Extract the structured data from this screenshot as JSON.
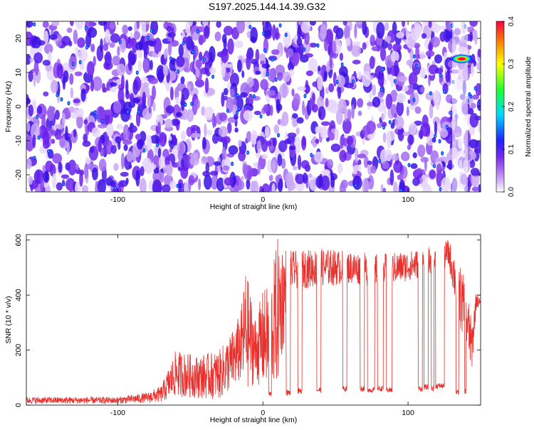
{
  "title": "S197.2025.144.14.39.G32",
  "chart_data": [
    {
      "type": "heatmap",
      "xlabel": "Height of straight line (km)",
      "ylabel": "Frequency (Hz)",
      "xlim": [
        -163,
        150
      ],
      "ylim": [
        -25,
        25
      ],
      "xticks": [
        -100,
        0,
        100
      ],
      "yticks": [
        -20,
        -10,
        0,
        10,
        20
      ],
      "colorbar": {
        "label": "Normalized spectral amplitude",
        "range": [
          0,
          0.4
        ],
        "ticks": [
          "0.0",
          "0.1",
          "0.2",
          "0.3",
          "0.4"
        ],
        "colors": [
          "#ffffff",
          "#b070f0",
          "#7a2cf0",
          "#2020ff",
          "#00d8ff",
          "#20ff30",
          "#ffff00",
          "#ff8000",
          "#ff0040"
        ]
      },
      "peak": {
        "x": 137,
        "y": 14,
        "value": 0.4
      }
    },
    {
      "type": "line",
      "xlabel": "Height of straight line (km)",
      "ylabel": "SNR (10 * v/v)",
      "xlim": [
        -163,
        150
      ],
      "ylim": [
        0,
        620
      ],
      "xticks": [
        -100,
        0,
        100
      ],
      "yticks": [
        0,
        200,
        400,
        600
      ],
      "color": "#e8302c",
      "envelope": [
        {
          "x": -163,
          "low": 5,
          "high": 30
        },
        {
          "x": -120,
          "low": 5,
          "high": 30
        },
        {
          "x": -100,
          "low": 5,
          "high": 30
        },
        {
          "x": -80,
          "low": 8,
          "high": 45
        },
        {
          "x": -70,
          "low": 10,
          "high": 70
        },
        {
          "x": -60,
          "low": 30,
          "high": 200
        },
        {
          "x": -45,
          "low": 25,
          "high": 180
        },
        {
          "x": -30,
          "low": 20,
          "high": 200
        },
        {
          "x": -20,
          "low": 60,
          "high": 280
        },
        {
          "x": -15,
          "low": 80,
          "high": 350
        },
        {
          "x": -12,
          "low": 50,
          "high": 500
        },
        {
          "x": -5,
          "low": 80,
          "high": 320
        },
        {
          "x": 0,
          "low": 60,
          "high": 420
        },
        {
          "x": 5,
          "low": 80,
          "high": 440
        },
        {
          "x": 10,
          "low": 60,
          "high": 610
        },
        {
          "x": 20,
          "low": 420,
          "high": 560
        },
        {
          "x": 40,
          "low": 430,
          "high": 570
        },
        {
          "x": 60,
          "low": 440,
          "high": 560
        },
        {
          "x": 80,
          "low": 430,
          "high": 550
        },
        {
          "x": 100,
          "low": 450,
          "high": 560
        },
        {
          "x": 120,
          "low": 480,
          "high": 580
        },
        {
          "x": 128,
          "low": 500,
          "high": 605
        },
        {
          "x": 135,
          "low": 300,
          "high": 520
        },
        {
          "x": 140,
          "low": 200,
          "high": 450
        },
        {
          "x": 144,
          "low": 120,
          "high": 300
        },
        {
          "x": 147,
          "low": 350,
          "high": 420
        },
        {
          "x": 150,
          "low": 360,
          "high": 380
        }
      ],
      "dips": [
        {
          "x1": 4,
          "x2": 6,
          "level": 40
        },
        {
          "x1": 16,
          "x2": 19,
          "level": 45
        },
        {
          "x1": 24,
          "x2": 27,
          "level": 50
        },
        {
          "x1": 37,
          "x2": 40,
          "level": 55
        },
        {
          "x1": 55,
          "x2": 58,
          "level": 60
        },
        {
          "x1": 67,
          "x2": 70,
          "level": 60
        },
        {
          "x1": 72,
          "x2": 77,
          "level": 55
        },
        {
          "x1": 79,
          "x2": 83,
          "level": 60
        },
        {
          "x1": 85,
          "x2": 89,
          "level": 55
        },
        {
          "x1": 107,
          "x2": 110,
          "level": 60
        },
        {
          "x1": 111,
          "x2": 114,
          "level": 65
        },
        {
          "x1": 116,
          "x2": 118,
          "level": 60
        },
        {
          "x1": 119,
          "x2": 125,
          "level": 70
        },
        {
          "x1": 133,
          "x2": 135,
          "level": 45
        },
        {
          "x1": 139,
          "x2": 140,
          "level": 50
        }
      ]
    }
  ]
}
